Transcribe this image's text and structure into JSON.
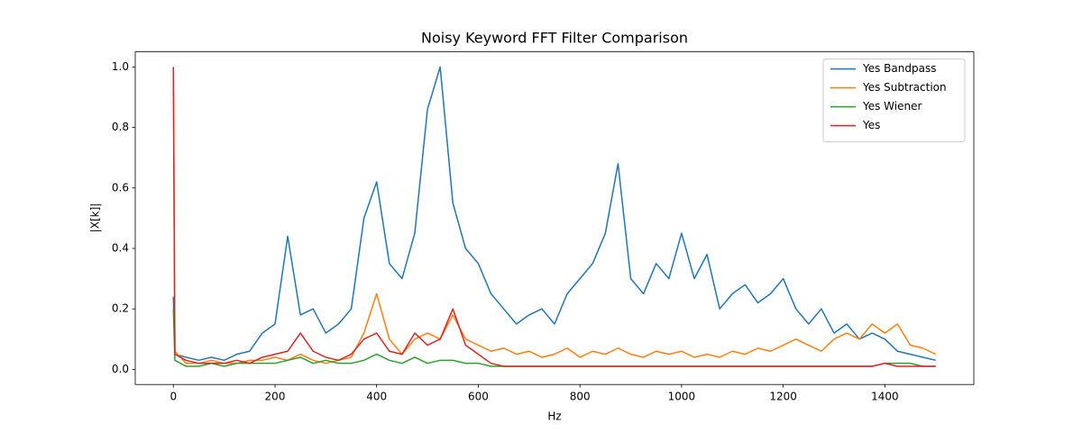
{
  "chart_data": {
    "type": "line",
    "title": "Noisy Keyword FFT Filter Comparison",
    "xlabel": "Hz",
    "ylabel": "|X[k]|",
    "x": [
      0,
      3,
      25,
      50,
      75,
      100,
      125,
      150,
      175,
      200,
      225,
      250,
      275,
      300,
      325,
      350,
      375,
      400,
      425,
      450,
      475,
      500,
      525,
      550,
      575,
      600,
      625,
      650,
      675,
      700,
      725,
      750,
      775,
      800,
      825,
      850,
      875,
      900,
      925,
      950,
      975,
      1000,
      1025,
      1050,
      1075,
      1100,
      1125,
      1150,
      1175,
      1200,
      1225,
      1250,
      1275,
      1300,
      1325,
      1350,
      1375,
      1400,
      1425,
      1450,
      1475,
      1500
    ],
    "series": [
      {
        "name": "Yes Bandpass",
        "color": "#1f77b4",
        "values": [
          0.24,
          0.05,
          0.04,
          0.03,
          0.04,
          0.03,
          0.05,
          0.06,
          0.12,
          0.15,
          0.44,
          0.18,
          0.2,
          0.12,
          0.15,
          0.2,
          0.5,
          0.62,
          0.35,
          0.3,
          0.45,
          0.86,
          1.0,
          0.55,
          0.4,
          0.35,
          0.25,
          0.2,
          0.15,
          0.18,
          0.2,
          0.15,
          0.25,
          0.3,
          0.35,
          0.45,
          0.68,
          0.3,
          0.25,
          0.35,
          0.3,
          0.45,
          0.3,
          0.38,
          0.2,
          0.25,
          0.28,
          0.22,
          0.25,
          0.3,
          0.2,
          0.15,
          0.2,
          0.12,
          0.15,
          0.1,
          0.12,
          0.1,
          0.06,
          0.05,
          0.04,
          0.03
        ]
      },
      {
        "name": "Yes Subtraction",
        "color": "#ff7f0e",
        "values": [
          1.0,
          0.06,
          0.02,
          0.02,
          0.03,
          0.02,
          0.02,
          0.03,
          0.03,
          0.04,
          0.03,
          0.05,
          0.03,
          0.02,
          0.03,
          0.04,
          0.12,
          0.25,
          0.1,
          0.05,
          0.1,
          0.12,
          0.1,
          0.18,
          0.1,
          0.08,
          0.06,
          0.07,
          0.05,
          0.06,
          0.04,
          0.05,
          0.07,
          0.04,
          0.06,
          0.05,
          0.07,
          0.05,
          0.04,
          0.06,
          0.05,
          0.06,
          0.04,
          0.05,
          0.04,
          0.06,
          0.05,
          0.07,
          0.06,
          0.08,
          0.1,
          0.08,
          0.06,
          0.1,
          0.12,
          0.1,
          0.15,
          0.12,
          0.15,
          0.08,
          0.07,
          0.05
        ]
      },
      {
        "name": "Yes Wiener",
        "color": "#2ca02c",
        "values": [
          0.2,
          0.03,
          0.01,
          0.01,
          0.02,
          0.01,
          0.02,
          0.02,
          0.02,
          0.02,
          0.03,
          0.04,
          0.02,
          0.03,
          0.02,
          0.02,
          0.03,
          0.05,
          0.03,
          0.02,
          0.04,
          0.02,
          0.03,
          0.03,
          0.02,
          0.02,
          0.01,
          0.01,
          0.01,
          0.01,
          0.01,
          0.01,
          0.01,
          0.01,
          0.01,
          0.01,
          0.01,
          0.01,
          0.01,
          0.01,
          0.01,
          0.01,
          0.01,
          0.01,
          0.01,
          0.01,
          0.01,
          0.01,
          0.01,
          0.01,
          0.01,
          0.01,
          0.01,
          0.01,
          0.01,
          0.01,
          0.01,
          0.02,
          0.02,
          0.02,
          0.01,
          0.01
        ]
      },
      {
        "name": "Yes",
        "color": "#d62728",
        "values": [
          1.0,
          0.05,
          0.03,
          0.02,
          0.02,
          0.02,
          0.03,
          0.02,
          0.04,
          0.05,
          0.06,
          0.12,
          0.06,
          0.04,
          0.03,
          0.05,
          0.1,
          0.12,
          0.06,
          0.05,
          0.12,
          0.08,
          0.1,
          0.2,
          0.08,
          0.05,
          0.02,
          0.01,
          0.01,
          0.01,
          0.01,
          0.01,
          0.01,
          0.01,
          0.01,
          0.01,
          0.01,
          0.01,
          0.01,
          0.01,
          0.01,
          0.01,
          0.01,
          0.01,
          0.01,
          0.01,
          0.01,
          0.01,
          0.01,
          0.01,
          0.01,
          0.01,
          0.01,
          0.01,
          0.01,
          0.01,
          0.01,
          0.02,
          0.01,
          0.01,
          0.01,
          0.01
        ]
      }
    ],
    "xlim": [
      -75,
      1575
    ],
    "ylim": [
      -0.05,
      1.05
    ],
    "xticks": [
      0,
      200,
      400,
      600,
      800,
      1000,
      1200,
      1400
    ],
    "yticks": [
      {
        "value": 0,
        "label": "0.0"
      },
      0.2,
      0.4,
      0.6,
      0.8,
      {
        "value": 1,
        "label": "1.0"
      }
    ],
    "legend": "upper right"
  }
}
